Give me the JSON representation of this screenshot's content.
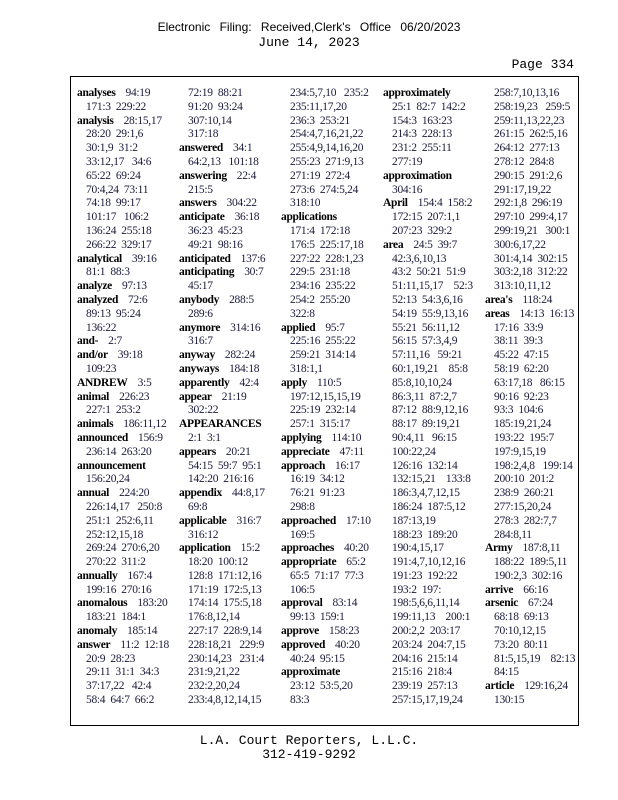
{
  "header": {
    "stamp": "Electronic Filing: Received,Clerk's Office 06/20/2023",
    "date": "June 14, 2023",
    "page": "Page 334"
  },
  "footer": {
    "company": "L.A. Court Reporters, L.L.C.",
    "phone": "312-419-9292"
  },
  "columns": [
    [
      {
        "term": "analyses",
        "lines": [
          "94:19",
          "171:3  229:22"
        ]
      },
      {
        "term": "analysis",
        "lines": [
          "28:15,17",
          "28:20  29:1,6",
          "30:1,9  31:2",
          "33:12,17   34:6",
          "65:22  69:24",
          "70:4,24  73:11",
          "74:18  99:17",
          "101:17   106:2",
          "136:24  255:18",
          "266:22  329:17"
        ]
      },
      {
        "term": "analytical",
        "lines": [
          "39:16",
          "81:1  88:3"
        ]
      },
      {
        "term": "analyze",
        "lines": [
          "97:13"
        ]
      },
      {
        "term": "analyzed",
        "lines": [
          "72:6",
          "89:13  95:24",
          "136:22"
        ]
      },
      {
        "term": "and-",
        "lines": [
          "2:7"
        ]
      },
      {
        "term": "and/or",
        "lines": [
          "39:18",
          "109:23"
        ]
      },
      {
        "term": "ANDREW",
        "lines": [
          "3:5"
        ]
      },
      {
        "term": "animal",
        "lines": [
          "226:23",
          "227:1  253:2"
        ]
      },
      {
        "term": "animals",
        "lines": [
          "186:11,12"
        ]
      },
      {
        "term": "announced",
        "lines": [
          "156:9",
          "236:14  263:20"
        ]
      },
      {
        "term": "announcement",
        "lines": [
          "",
          "156:20,24"
        ]
      },
      {
        "term": "annual",
        "lines": [
          "224:20",
          "226:14,17   250:8",
          "251:1  252:6,11",
          "252:12,15,18",
          "269:24  270:6,20",
          "270:22  311:2"
        ]
      },
      {
        "term": "annually",
        "lines": [
          "167:4",
          "199:16  270:16"
        ]
      },
      {
        "term": "anomalous",
        "lines": [
          "183:20",
          "183:21  184:1"
        ]
      },
      {
        "term": "anomaly",
        "lines": [
          "185:14"
        ]
      },
      {
        "term": "answer",
        "lines": [
          "11:2  12:18",
          "20:9  28:23",
          "29:11  31:1  34:3",
          "37:17,22   42:4",
          "58:4  64:7  66:2"
        ]
      }
    ],
    [
      {
        "term": "",
        "lines": [
          "72:19  88:21",
          "91:20  93:24",
          "307:10,14",
          "317:18"
        ]
      },
      {
        "term": "answered",
        "lines": [
          "34:1",
          "64:2,13   101:18"
        ]
      },
      {
        "term": "answering",
        "lines": [
          "22:4",
          "215:5"
        ]
      },
      {
        "term": "answers",
        "lines": [
          "304:22"
        ]
      },
      {
        "term": "anticipate",
        "lines": [
          "36:18",
          "36:23  45:23",
          "49:21  98:16"
        ]
      },
      {
        "term": "anticipated",
        "lines": [
          "137:6"
        ]
      },
      {
        "term": "anticipating",
        "lines": [
          "30:7",
          "45:17"
        ]
      },
      {
        "term": "anybody",
        "lines": [
          "288:5",
          "289:6"
        ]
      },
      {
        "term": "anymore",
        "lines": [
          "314:16",
          "316:7"
        ]
      },
      {
        "term": "anyway",
        "lines": [
          "282:24"
        ]
      },
      {
        "term": "anyways",
        "lines": [
          "184:18"
        ]
      },
      {
        "term": "apparently",
        "lines": [
          "42:4"
        ]
      },
      {
        "term": "appear",
        "lines": [
          "21:19",
          "302:22"
        ]
      },
      {
        "term": "APPEARANCES",
        "lines": [
          "",
          "2:1  3:1"
        ]
      },
      {
        "term": "appears",
        "lines": [
          "20:21",
          "54:15  59:7  95:1",
          "142:20  216:16"
        ]
      },
      {
        "term": "appendix",
        "lines": [
          "44:8,17",
          "69:8"
        ]
      },
      {
        "term": "applicable",
        "lines": [
          "316:7",
          "316:12"
        ]
      },
      {
        "term": "application",
        "lines": [
          "15:2",
          "18:20  100:12",
          "128:8  171:12,16",
          "171:19  172:5,13",
          "174:14  175:5,18",
          "176:8,12,14",
          "227:17  228:9,14",
          "228:18,21   229:9",
          "230:14,23   231:4",
          "231:9,21,22",
          "232:2,20,24",
          "233:4,8,12,14,15"
        ]
      }
    ],
    [
      {
        "term": "",
        "lines": [
          "234:5,7,10   235:2",
          "235:11,17,20",
          "236:3  253:21",
          "254:4,7,16,21,22",
          "255:4,9,14,16,20",
          "255:23  271:9,13",
          "271:19  272:4",
          "273:6  274:5,24",
          "318:10"
        ]
      },
      {
        "term": "applications",
        "lines": [
          "",
          "171:4  172:18",
          "176:5  225:17,18",
          "227:22  228:1,23",
          "229:5  231:18",
          "234:16  235:22",
          "254:2  255:20",
          "322:8"
        ]
      },
      {
        "term": "applied",
        "lines": [
          "95:7",
          "225:16  255:22",
          "259:21  314:14",
          "318:1,1"
        ]
      },
      {
        "term": "apply",
        "lines": [
          "110:5",
          "197:12,15,15,19",
          "225:19  232:14",
          "257:1  315:17"
        ]
      },
      {
        "term": "applying",
        "lines": [
          "114:10"
        ]
      },
      {
        "term": "appreciate",
        "lines": [
          "47:11"
        ]
      },
      {
        "term": "approach",
        "lines": [
          "16:17",
          "16:19  34:12",
          "76:21  91:23",
          "298:8"
        ]
      },
      {
        "term": "approached",
        "lines": [
          "17:10",
          "169:5"
        ]
      },
      {
        "term": "approaches",
        "lines": [
          "40:20"
        ]
      },
      {
        "term": "appropriate",
        "lines": [
          "65:2",
          "65:5  71:17  77:3",
          "106:5"
        ]
      },
      {
        "term": "approval",
        "lines": [
          "83:14",
          "99:13  159:1"
        ]
      },
      {
        "term": "approve",
        "lines": [
          "158:23"
        ]
      },
      {
        "term": "approved",
        "lines": [
          "40:20",
          "40:24  95:15"
        ]
      },
      {
        "term": "approximate",
        "lines": [
          "",
          "23:12  53:5,20",
          "83:3"
        ]
      }
    ],
    [
      {
        "term": "approximately",
        "lines": [
          "",
          "25:1  82:7  142:2",
          "154:3  163:23",
          "214:3  228:13",
          "231:2  255:11",
          "277:19"
        ]
      },
      {
        "term": "approximation",
        "lines": [
          "",
          "304:16"
        ]
      },
      {
        "term": "April",
        "lines": [
          "154:4  158:2",
          "172:15  207:1,1",
          "207:23  329:2"
        ]
      },
      {
        "term": "area",
        "lines": [
          "24:5  39:7",
          "42:3,6,10,13",
          "43:2  50:21  51:9",
          "51:11,15,17    52:3",
          "52:13  54:3,6,16",
          "54:19  55:9,13,16",
          "55:21  56:11,12",
          "56:15  57:3,4,9",
          "57:11,16   59:21",
          "60:1,19,21    85:8",
          "85:8,10,10,24",
          "86:3,11  87:2,7",
          "87:12  88:9,12,16",
          "88:17  89:19,21",
          "90:4,11   96:15",
          "100:22,24",
          "126:16  132:14",
          "132:15,21    133:8",
          "186:3,4,7,12,15",
          "186:24  187:5,12",
          "187:13,19",
          "188:23  189:20",
          "190:4,15,17",
          "191:4,7,10,12,16",
          "191:23  192:22",
          "193:2  197:",
          "198:5,6,6,11,14",
          "199:11,13    200:1",
          "200:2,2  203:17",
          "203:24  204:7,15",
          "204:16  215:14",
          "215:16  218:4",
          "239:19  257:13",
          "257:15,17,19,24"
        ]
      }
    ],
    [
      {
        "term": "",
        "lines": [
          "258:7,10,13,16",
          "258:19,23   259:5",
          "259:11,13,22,23",
          "261:15  262:5,16",
          "264:12  277:13",
          "278:12  284:8",
          "290:15  291:2,6",
          "291:17,19,22",
          "292:1,8  296:19",
          "297:10  299:4,17",
          "299:19,21   300:1",
          "300:6,17,22",
          "301:4,14  302:15",
          "303:2,18  312:22",
          "313:10,11,12"
        ]
      },
      {
        "term": "area's",
        "lines": [
          "118:24"
        ]
      },
      {
        "term": "areas",
        "lines": [
          "14:13  16:13",
          "17:16  33:9",
          "38:11  39:3",
          "45:22  47:15",
          "58:19  62:20",
          "63:17,18   86:15",
          "90:16  92:23",
          "93:3  104:6",
          "185:19,21,24",
          "193:22  195:7",
          "197:9,15,19",
          "198:2,4,8   199:14",
          "200:10  201:2",
          "238:9  260:21",
          "277:15,20,24",
          "278:3  282:7,7",
          "284:8,11"
        ]
      },
      {
        "term": "Army",
        "lines": [
          "187:8,11",
          "188:22  189:5,11",
          "190:2,3  302:16"
        ]
      },
      {
        "term": "arrive",
        "lines": [
          "66:16"
        ]
      },
      {
        "term": "arsenic",
        "lines": [
          "67:24",
          "68:18  69:13",
          "70:10,12,15",
          "73:20  80:11",
          "81:5,15,19    82:13",
          "84:15"
        ]
      },
      {
        "term": "article",
        "lines": [
          "129:16,24",
          "130:15"
        ]
      }
    ]
  ]
}
